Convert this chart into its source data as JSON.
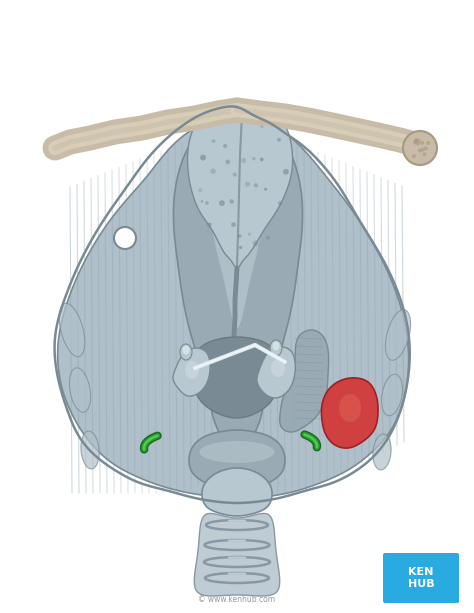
{
  "bg_color": "#ffffff",
  "fig_width": 4.74,
  "fig_height": 6.13,
  "dpi": 100,
  "kenhub_box_color": "#29aae1",
  "kenhub_text": "KEN\nHUB",
  "watermark_text": "© www.kenhub.com",
  "body_light": "#b8c8d0",
  "body_mid": "#9aaab4",
  "body_dark": "#7a8a94",
  "body_shadow": "#6a7a84",
  "wing_light": "#b0c0ca",
  "wing_mid": "#98aab4",
  "wing_dark": "#7090a0",
  "muscle_stripe": "#88a0ac",
  "bone_fill": "#c8bca8",
  "bone_light": "#d8ceb8",
  "bone_dark": "#a89880",
  "epi_fill": "#a8bac4",
  "epi_light": "#c0d0d8",
  "epi_dark": "#8898a4",
  "red_fill": "#d04040",
  "red_light": "#e06858",
  "green_fill": "#2a9a30",
  "green_light": "#50cc50",
  "trachea_light": "#c0ccd4",
  "trachea_dark": "#8898a4",
  "inner_dark": "#5a6870"
}
